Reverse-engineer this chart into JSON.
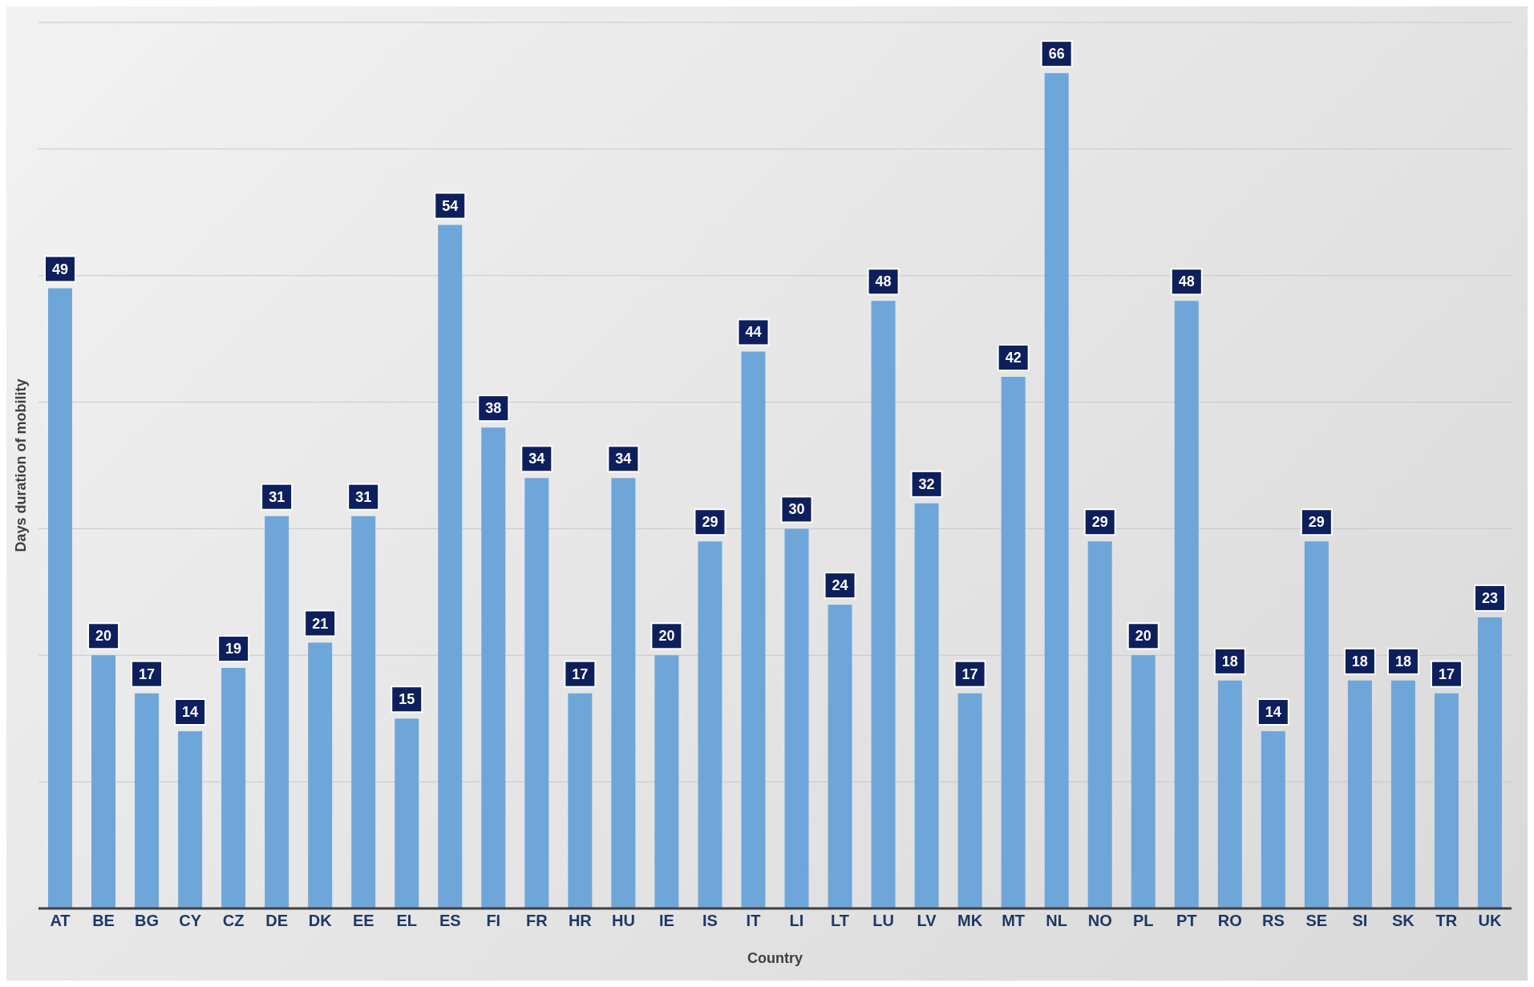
{
  "chart_data": {
    "type": "bar",
    "ylabel": "Days duration of mobility",
    "xlabel": "Country",
    "categories": [
      "AT",
      "BE",
      "BG",
      "CY",
      "CZ",
      "DE",
      "DK",
      "EE",
      "EL",
      "ES",
      "FI",
      "FR",
      "HR",
      "HU",
      "IE",
      "IS",
      "IT",
      "LI",
      "LT",
      "LU",
      "LV",
      "MK",
      "MT",
      "NL",
      "NO",
      "PL",
      "PT",
      "RO",
      "RS",
      "SE",
      "SI",
      "SK",
      "TR",
      "UK"
    ],
    "values": [
      49,
      20,
      17,
      14,
      19,
      31,
      21,
      31,
      15,
      54,
      38,
      34,
      17,
      34,
      20,
      29,
      44,
      30,
      24,
      48,
      32,
      17,
      42,
      66,
      29,
      20,
      48,
      18,
      14,
      29,
      18,
      18,
      17,
      23
    ],
    "color": "#6fa6da",
    "ylim": [
      0,
      70
    ],
    "yticks": [
      {
        "value": 0,
        "label": null
      },
      {
        "value": 10,
        "label": null
      },
      {
        "value": 20,
        "label": null
      },
      {
        "value": 30,
        "label": null
      },
      {
        "value": 40,
        "label": null
      },
      {
        "value": 50,
        "label": null
      },
      {
        "value": 60,
        "label": null
      },
      {
        "value": 70,
        "label": null
      }
    ],
    "grid": "y",
    "tick_labels": "x",
    "data_labels": true,
    "legend": false
  }
}
